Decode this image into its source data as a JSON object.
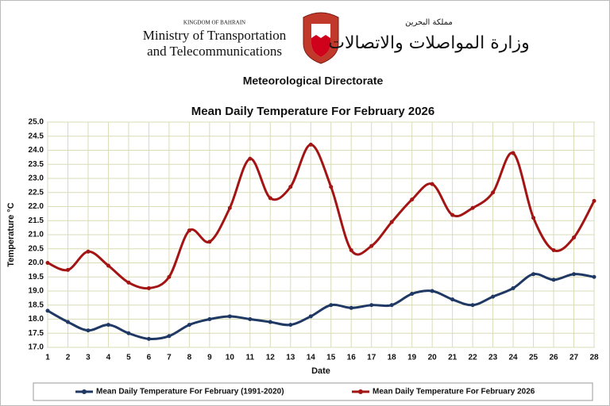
{
  "header": {
    "kingdom": "KINGDOM OF BAHRAIN",
    "ministry_line1": "Ministry of Transportation",
    "ministry_line2": "and Telecommunications",
    "arabic_kingdom": "مملكة البحرين",
    "arabic_ministry": "وزارة المواصلات والاتصالات",
    "directorate": "Meteorological Directorate"
  },
  "chart_data": {
    "type": "line",
    "title": "Mean Daily Temperature For February 2026",
    "x_label": "Date",
    "y_label": "Temperature °C",
    "x": [
      1,
      2,
      3,
      4,
      5,
      6,
      7,
      8,
      9,
      10,
      11,
      12,
      13,
      14,
      15,
      16,
      17,
      18,
      19,
      20,
      21,
      22,
      23,
      24,
      25,
      26,
      27,
      28
    ],
    "xlim": [
      1,
      28
    ],
    "ylim": [
      17,
      25
    ],
    "yticks": [
      {
        "value": 17,
        "label": "17.0"
      },
      17.5,
      {
        "value": 18,
        "label": "18.0"
      },
      18.5,
      {
        "value": 19,
        "label": "19.0"
      },
      19.5,
      {
        "value": 20,
        "label": "20.0"
      },
      20.5,
      {
        "value": 21,
        "label": "21.0"
      },
      21.5,
      {
        "value": 22,
        "label": "22.0"
      },
      22.5,
      {
        "value": 23,
        "label": "23.0"
      },
      23.5,
      {
        "value": 24,
        "label": "24.0"
      },
      24.5,
      {
        "value": 25,
        "label": "25.0"
      }
    ],
    "grid": true,
    "legend": "bottom",
    "series": [
      {
        "name": "Mean Daily Temperature For February (1991-2020)",
        "color": "#1f3864",
        "values": [
          18.3,
          17.9,
          17.6,
          17.8,
          17.5,
          17.3,
          17.4,
          17.8,
          18.0,
          18.1,
          18.0,
          17.9,
          17.8,
          18.1,
          18.5,
          18.4,
          18.5,
          18.5,
          18.9,
          19.0,
          18.7,
          18.5,
          18.8,
          19.1,
          19.6,
          19.4,
          19.6,
          19.5
        ]
      },
      {
        "name": "Mean Daily Temperature For February 2026",
        "color": "#a31515",
        "values": [
          20.0,
          19.75,
          20.4,
          19.9,
          19.3,
          19.1,
          19.5,
          21.15,
          20.75,
          21.95,
          23.7,
          22.3,
          22.7,
          24.2,
          22.7,
          20.45,
          20.6,
          21.45,
          22.25,
          22.8,
          21.7,
          21.95,
          22.5,
          23.9,
          21.6,
          20.45,
          20.9,
          22.2
        ]
      }
    ]
  }
}
